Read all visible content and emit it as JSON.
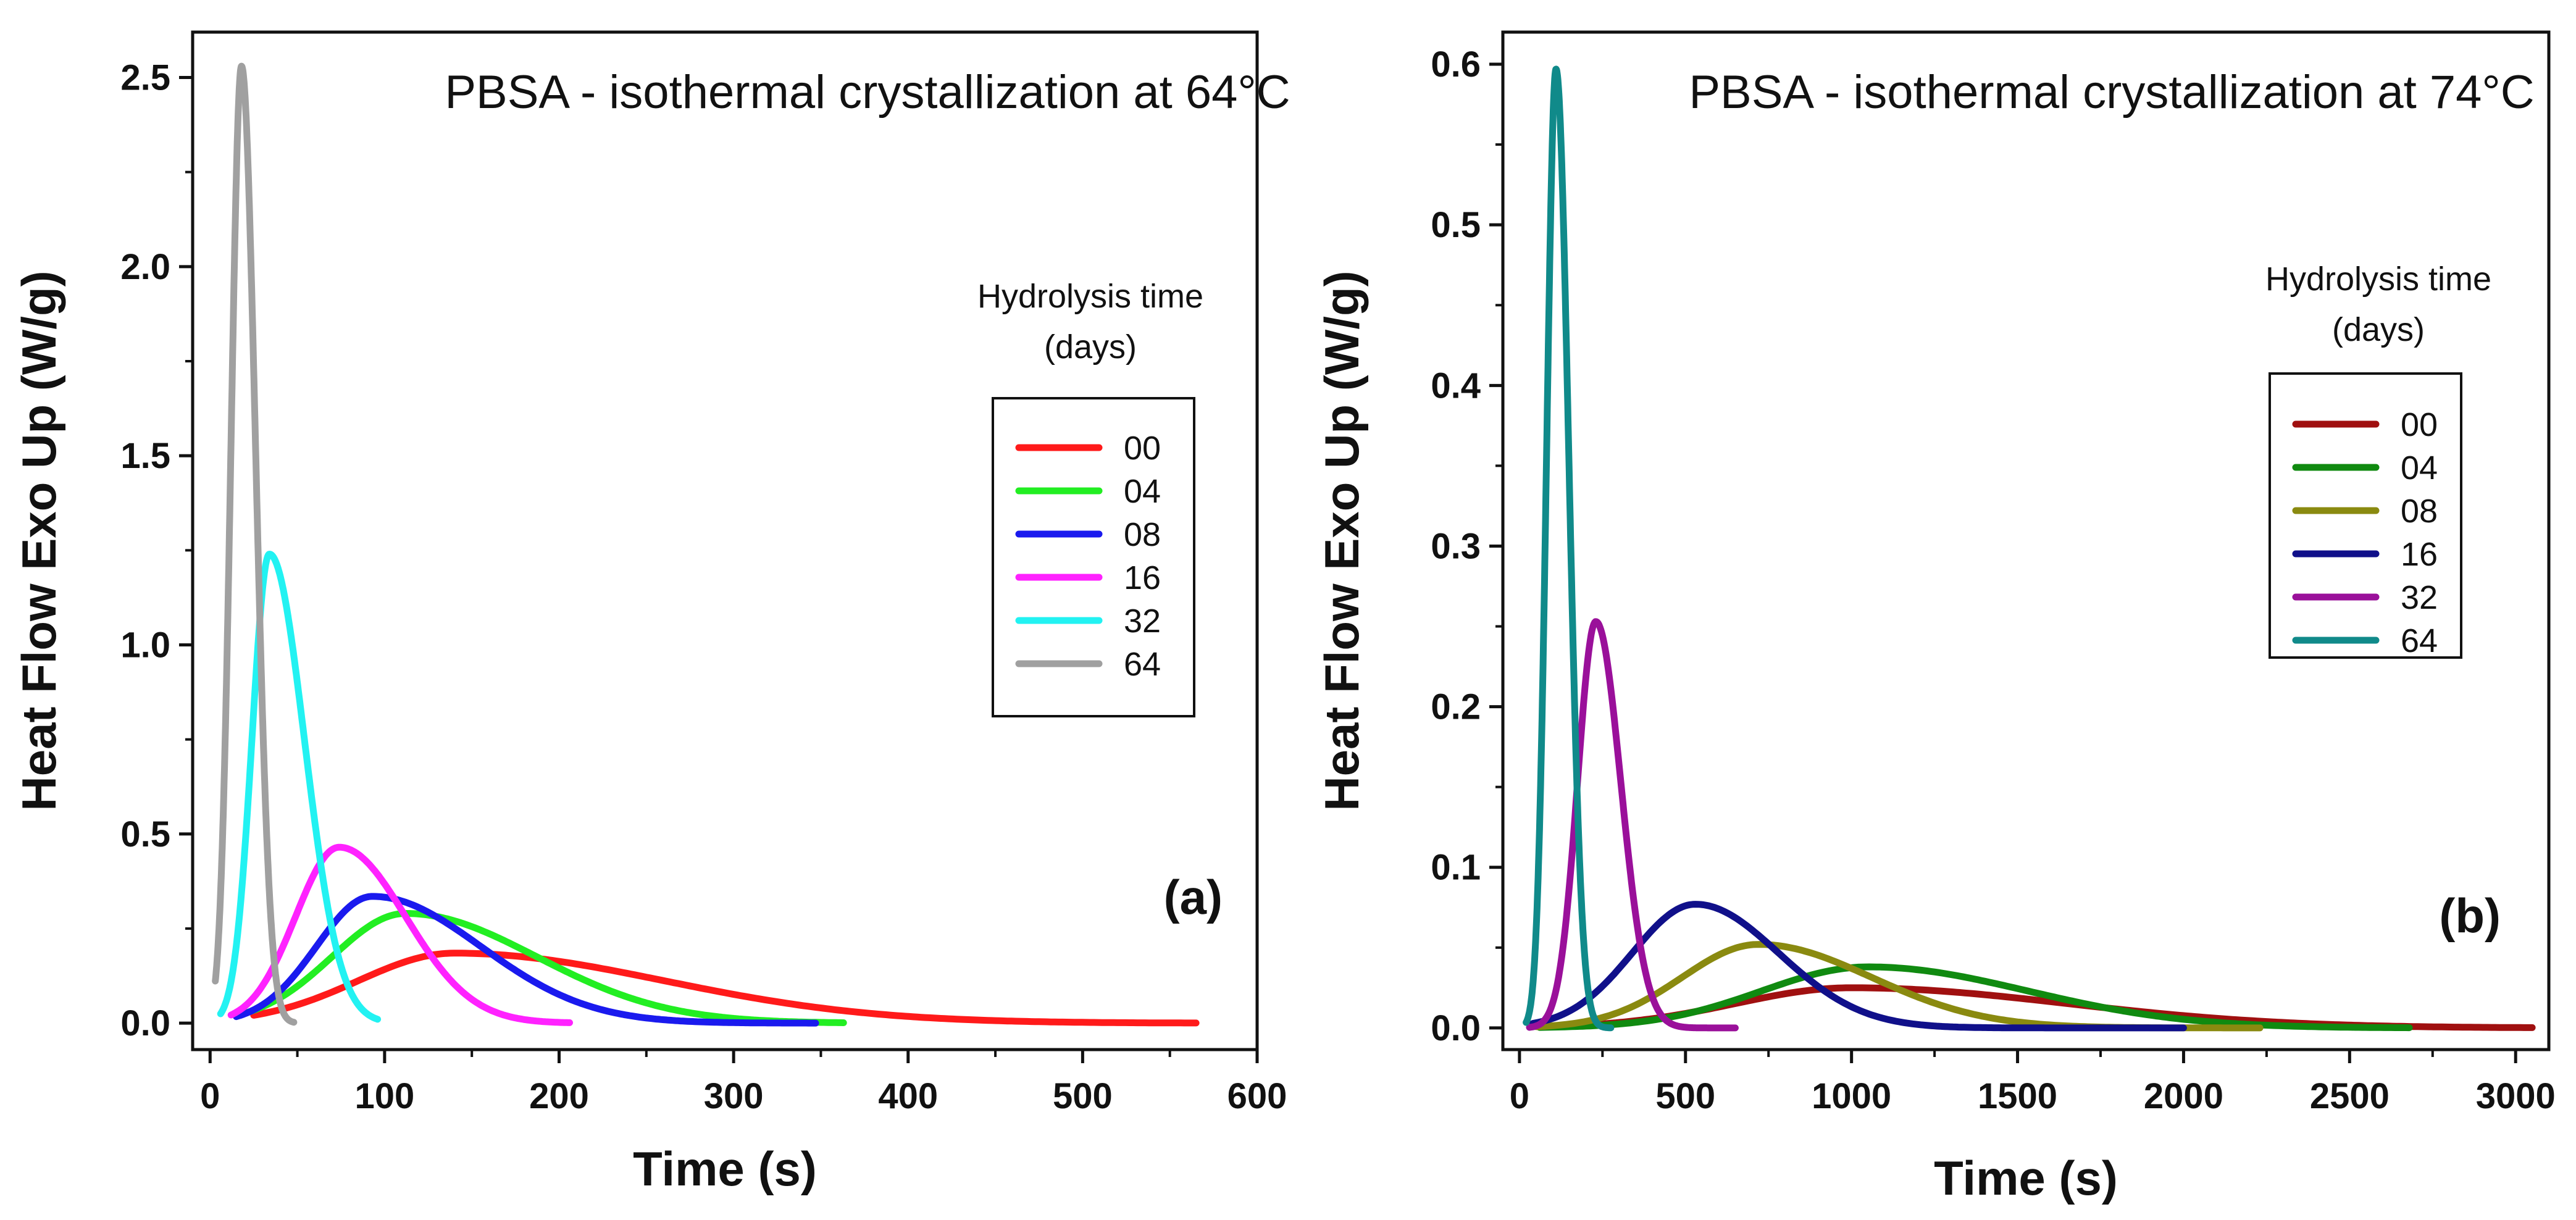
{
  "chart_data": [
    {
      "type": "line",
      "title": "PBSA - isothermal crystallization at 64°C",
      "panel_label": "(a)",
      "xlabel": "Time (s)",
      "ylabel": "Heat Flow Exo Up (W/g)",
      "xlim": [
        -10,
        600
      ],
      "ylim": [
        -0.07,
        2.62
      ],
      "xticks": [
        0,
        100,
        200,
        300,
        400,
        500,
        600
      ],
      "yticks": [
        0.0,
        0.5,
        1.0,
        1.5,
        2.0,
        2.5
      ],
      "xtick_labels": [
        "0",
        "100",
        "200",
        "300",
        "400",
        "500",
        "600"
      ],
      "ytick_labels": [
        "0.0",
        "0.5",
        "1.0",
        "1.5",
        "2.0",
        "2.5"
      ],
      "legend_title_line1": "Hydrolysis time",
      "legend_title_line2": "(days)",
      "legend_position": "center-right",
      "series": [
        {
          "name": "00",
          "color": "#ff1a1a",
          "x_start": 25,
          "x_end": 565,
          "peak_x": 140,
          "peak_y": 0.185,
          "w_left": 55,
          "w_right": 120
        },
        {
          "name": "04",
          "color": "#22ee22",
          "x_start": 20,
          "x_end": 363,
          "peak_x": 112,
          "peak_y": 0.29,
          "w_left": 42,
          "w_right": 75
        },
        {
          "name": "08",
          "color": "#1a1aee",
          "x_start": 15,
          "x_end": 347,
          "peak_x": 93,
          "peak_y": 0.335,
          "w_left": 32,
          "w_right": 62
        },
        {
          "name": "16",
          "color": "#ff22ff",
          "x_start": 12,
          "x_end": 206,
          "peak_x": 74,
          "peak_y": 0.465,
          "w_left": 25,
          "w_right": 38
        },
        {
          "name": "32",
          "color": "#22f2f2",
          "x_start": 6,
          "x_end": 96,
          "peak_x": 34,
          "peak_y": 1.24,
          "w_left": 10,
          "w_right": 20
        },
        {
          "name": "64",
          "color": "#a0a0a0",
          "x_start": 3,
          "x_end": 48,
          "peak_x": 18,
          "peak_y": 2.53,
          "w_left": 6,
          "w_right": 8
        }
      ]
    },
    {
      "type": "line",
      "title": "PBSA - isothermal crystallization at 74°C",
      "panel_label": "(b)",
      "xlabel": "Time (s)",
      "ylabel": "Heat Flow Exo Up (W/g)",
      "xlim": [
        -50,
        3100
      ],
      "ylim": [
        -0.0135,
        0.62
      ],
      "xticks": [
        0,
        500,
        1000,
        1500,
        2000,
        2500,
        3000
      ],
      "yticks": [
        0.0,
        0.1,
        0.2,
        0.3,
        0.4,
        0.5,
        0.6
      ],
      "xtick_labels": [
        "0",
        "500",
        "1000",
        "1500",
        "2000",
        "2500",
        "3000"
      ],
      "ytick_labels": [
        "0.0",
        "0.1",
        "0.2",
        "0.3",
        "0.4",
        "0.5",
        "0.6"
      ],
      "legend_title_line1": "Hydrolysis time",
      "legend_title_line2": "(days)",
      "legend_position": "center-right",
      "series": [
        {
          "name": "00",
          "color": "#a01010",
          "x_start": 80,
          "x_end": 3050,
          "peak_x": 1000,
          "peak_y": 0.025,
          "w_left": 350,
          "w_right": 650
        },
        {
          "name": "04",
          "color": "#108a10",
          "x_start": 60,
          "x_end": 2680,
          "peak_x": 1050,
          "peak_y": 0.038,
          "w_left": 320,
          "w_right": 480
        },
        {
          "name": "08",
          "color": "#8a8a10",
          "x_start": 50,
          "x_end": 2230,
          "peak_x": 720,
          "peak_y": 0.052,
          "w_left": 230,
          "w_right": 340
        },
        {
          "name": "16",
          "color": "#10108a",
          "x_start": 40,
          "x_end": 2000,
          "peak_x": 530,
          "peak_y": 0.077,
          "w_left": 190,
          "w_right": 250
        },
        {
          "name": "32",
          "color": "#9a109a",
          "x_start": 30,
          "x_end": 650,
          "peak_x": 230,
          "peak_y": 0.253,
          "w_left": 55,
          "w_right": 75
        },
        {
          "name": "64",
          "color": "#108a8a",
          "x_start": 20,
          "x_end": 275,
          "peak_x": 110,
          "peak_y": 0.597,
          "w_left": 28,
          "w_right": 38
        }
      ]
    }
  ]
}
